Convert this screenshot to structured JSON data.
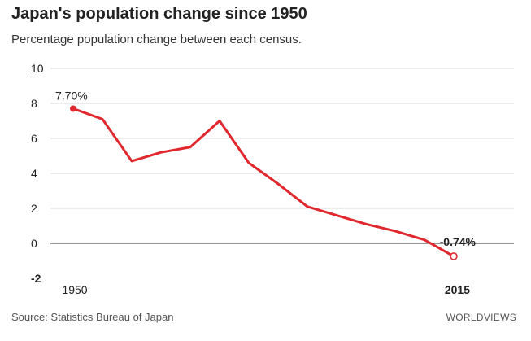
{
  "title": "Japan's population change since 1950",
  "subtitle": "Percentage population change between each census.",
  "source": "Source: Statistics Bureau of Japan",
  "brand": "WORLDVIEWS",
  "colors": {
    "line": "#e0282e",
    "grid": "#d9d9d9",
    "zero": "#333333",
    "bg": "#ffffff"
  },
  "chart_data": {
    "type": "line",
    "title": "Japan's population change since 1950",
    "subtitle": "Percentage population change between each census.",
    "xlabel": "",
    "ylabel": "",
    "xlim": [
      1950,
      2015
    ],
    "ylim": [
      -2,
      10
    ],
    "yticks": [
      "-2",
      "0",
      "2",
      "4",
      "6",
      "8",
      "10"
    ],
    "xticks": [
      "1950",
      "2015"
    ],
    "grid": true,
    "series": [
      {
        "x": [
          1950,
          1955,
          1960,
          1965,
          1970,
          1975,
          1980,
          1985,
          1990,
          1995,
          2000,
          2005,
          2010,
          2015
        ],
        "values": [
          7.7,
          7.1,
          4.7,
          5.2,
          5.5,
          7.0,
          4.6,
          3.4,
          2.1,
          1.6,
          1.1,
          0.7,
          0.2,
          -0.74
        ]
      }
    ],
    "annotations": [
      {
        "text": "7.70%",
        "x": 1950,
        "y": 7.7
      },
      {
        "text": "-0.74%",
        "x": 2015,
        "y": -0.74
      }
    ]
  }
}
